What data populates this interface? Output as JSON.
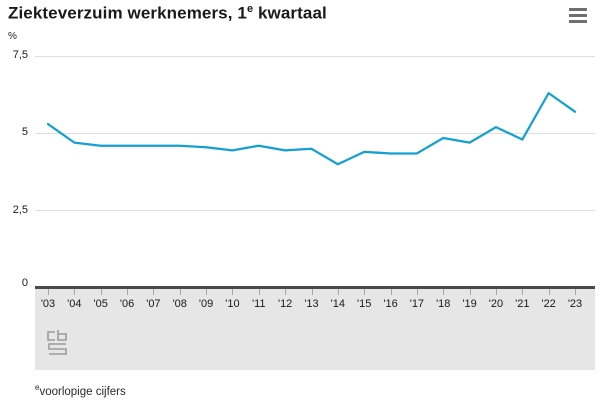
{
  "header": {
    "title_pre": "Ziekteverzuim werknemers, 1",
    "title_sup": "e",
    "title_post": " kwartaal"
  },
  "chart_data": {
    "type": "line",
    "title": "Ziekteverzuim werknemers, 1e kwartaal",
    "ylabel": "%",
    "ylim": [
      0,
      7.5
    ],
    "grid": true,
    "legend": "none",
    "line_color": "#14a0d3",
    "categories": [
      "'03",
      "'04",
      "'05",
      "'06",
      "'07",
      "'08",
      "'09",
      "'10",
      "'11",
      "'12",
      "'13",
      "'14",
      "'15",
      "'16",
      "'17",
      "'18",
      "'19",
      "'20",
      "'21",
      "'22",
      "'23"
    ],
    "values": [
      5.3,
      4.7,
      4.6,
      4.6,
      4.6,
      4.6,
      4.55,
      4.45,
      4.6,
      4.45,
      4.5,
      4.0,
      4.4,
      4.35,
      4.35,
      4.85,
      4.7,
      5.2,
      4.8,
      6.3,
      5.7
    ],
    "yticks": [
      {
        "label": "7,5",
        "value": 7.5
      },
      {
        "label": "5",
        "value": 5
      },
      {
        "label": "2,5",
        "value": 2.5
      },
      {
        "label": "0",
        "value": 0
      }
    ]
  },
  "footer": {
    "footnote_marker": "e",
    "footnote_text": "voorlopige cijfers"
  }
}
